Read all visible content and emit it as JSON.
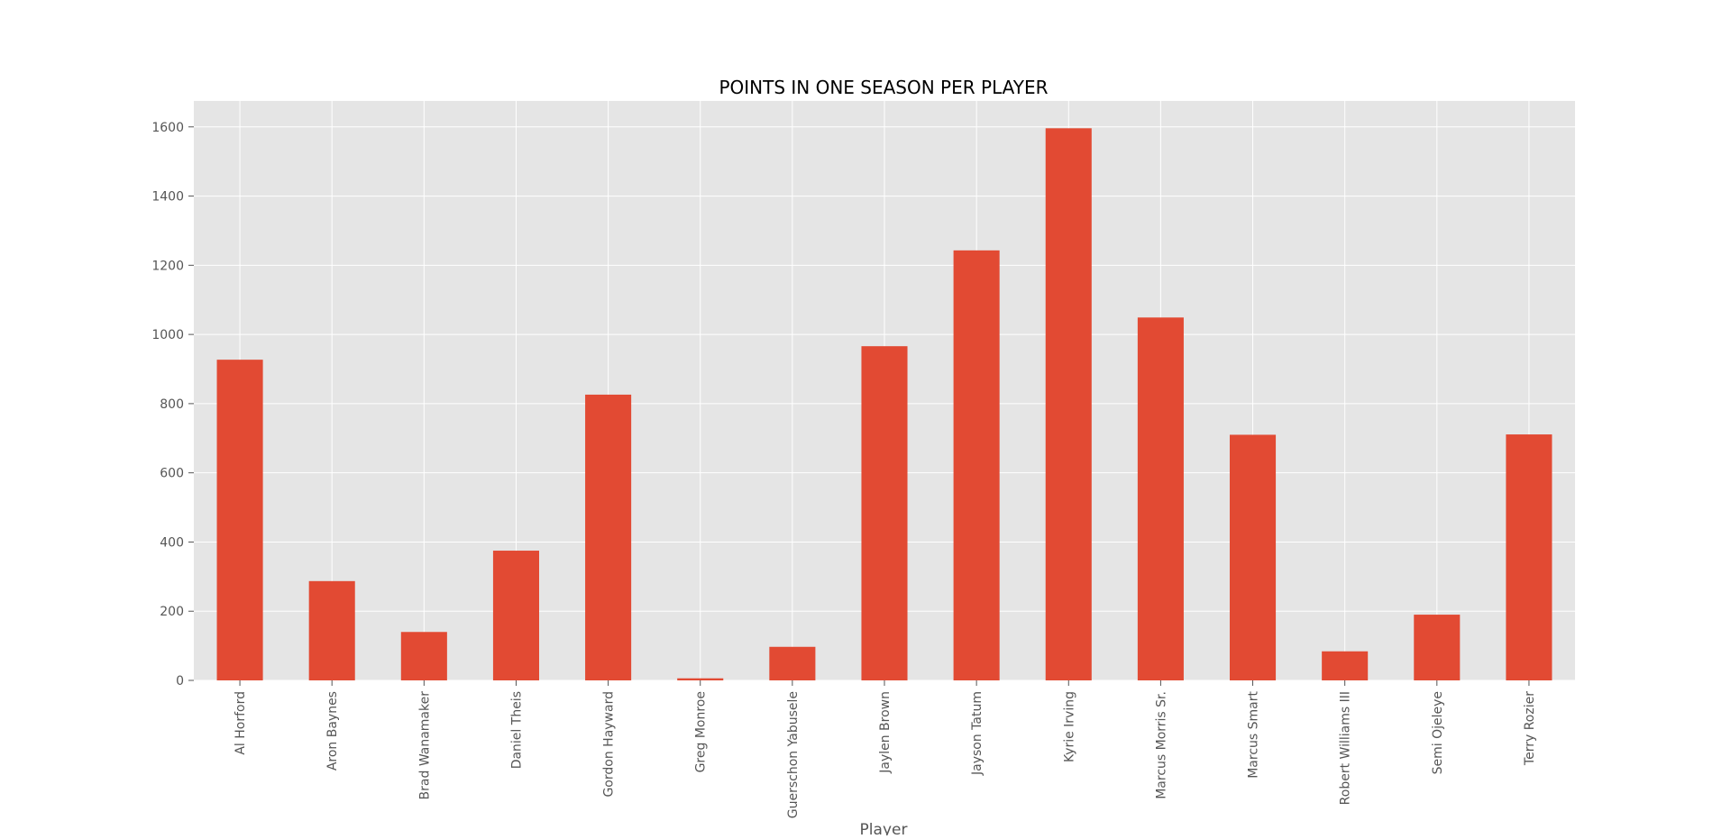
{
  "chart_data": {
    "type": "bar",
    "title": "POINTS IN ONE SEASON PER PLAYER",
    "xlabel": "Player",
    "ylabel": "",
    "ylim": [
      0,
      1675
    ],
    "yticks": [
      0,
      200,
      400,
      600,
      800,
      1000,
      1200,
      1400,
      1600
    ],
    "grid": true,
    "categories": [
      "Al Horford",
      "Aron Baynes",
      "Brad Wanamaker",
      "Daniel Theis",
      "Gordon Hayward",
      "Greg Monroe",
      "Guerschon Yabusele",
      "Jaylen Brown",
      "Jayson Tatum",
      "Kyrie Irving",
      "Marcus Morris Sr.",
      "Marcus Smart",
      "Robert Williams III",
      "Semi Ojeleye",
      "Terry Rozier"
    ],
    "values": [
      927,
      287,
      140,
      375,
      826,
      6,
      97,
      966,
      1243,
      1596,
      1049,
      710,
      84,
      190,
      711
    ]
  },
  "colors": {
    "bar": "#e24a33",
    "plot_background": "#e5e5e5",
    "grid": "#ffffff",
    "tick_text": "#555555",
    "title_text": "#000000"
  }
}
